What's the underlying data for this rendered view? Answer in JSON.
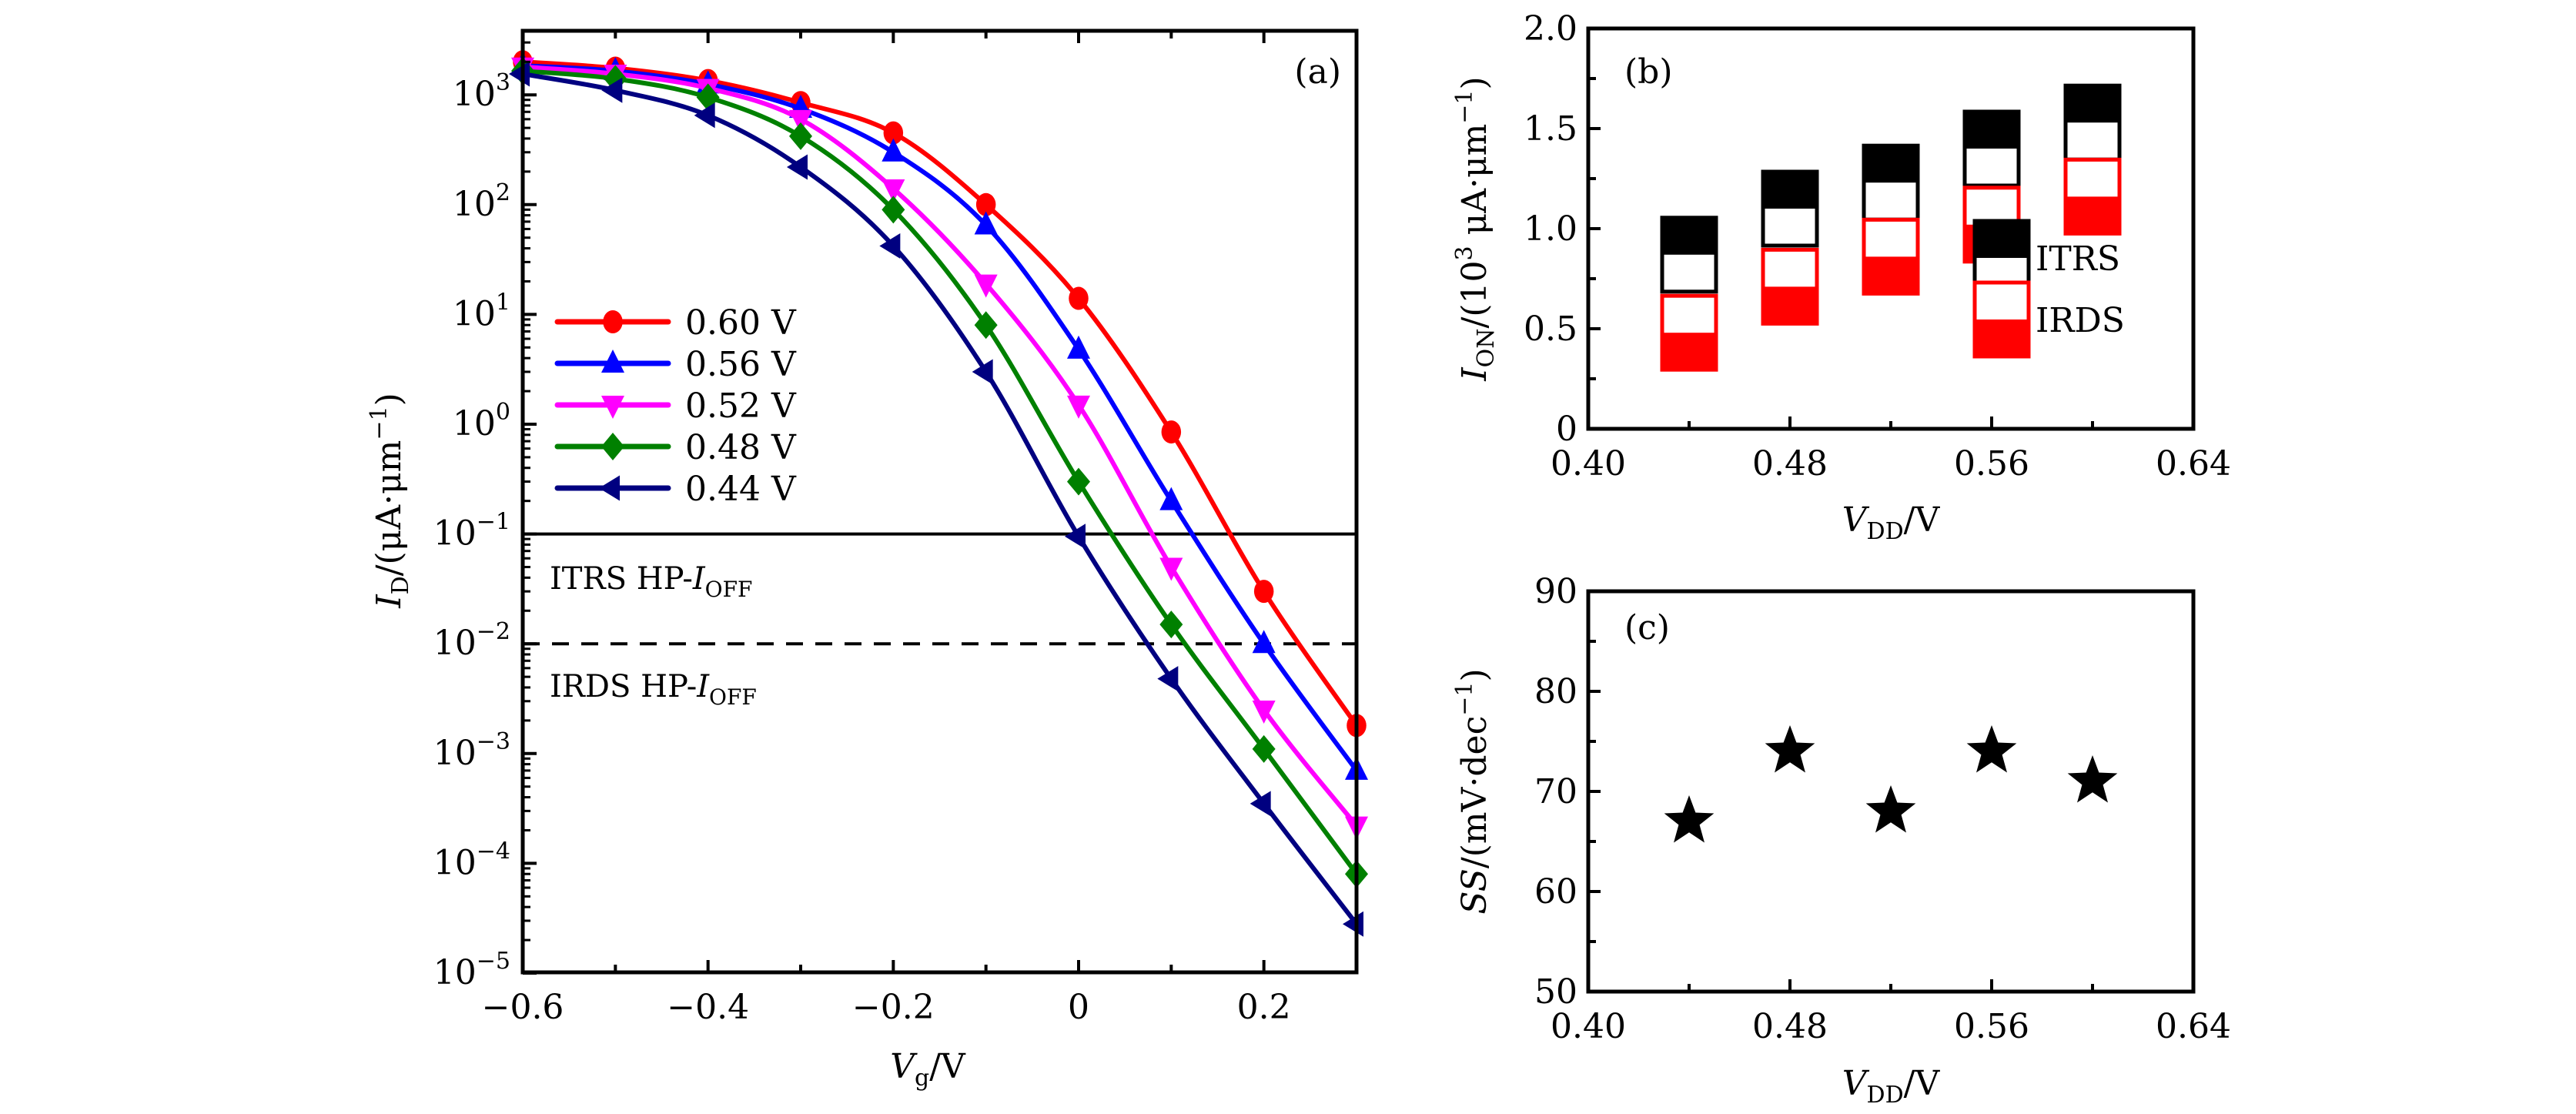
{
  "chart_data": [
    {
      "panel": "(a)",
      "type": "line",
      "title": "",
      "xlabel_main": "V",
      "xlabel_sub": "g",
      "xlabel_unit": "/V",
      "ylabel_main": "I",
      "ylabel_sub": "D",
      "ylabel_unit": "/(μA·μm",
      "ylabel_exp": "−1",
      "ylabel_close": ")",
      "yscale": "log",
      "xlim": [
        -0.6,
        0.3
      ],
      "ylim_log10": [
        -5,
        3.58
      ],
      "x": [
        -0.6,
        -0.5,
        -0.4,
        -0.3,
        -0.2,
        -0.1,
        0.0,
        0.1,
        0.2,
        0.3
      ],
      "x_ticks": [
        -0.6,
        -0.4,
        -0.2,
        0,
        0.2
      ],
      "x_tick_labels": [
        "−0.6",
        "−0.4",
        "−0.2",
        "0",
        "0.2"
      ],
      "y_tick_exps": [
        3,
        2,
        1,
        0,
        -1,
        -2,
        -3,
        -4,
        -5
      ],
      "y_tick_labels": [
        {
          "base": "10",
          "exp": "3"
        },
        {
          "base": "10",
          "exp": "2"
        },
        {
          "base": "10",
          "exp": "1"
        },
        {
          "base": "10",
          "exp": "0"
        },
        {
          "base": "10",
          "exp": "−1"
        },
        {
          "base": "10",
          "exp": "−2"
        },
        {
          "base": "10",
          "exp": "−3"
        },
        {
          "base": "10",
          "exp": "−4"
        },
        {
          "base": "10",
          "exp": "−5"
        }
      ],
      "legend_position": "center-left",
      "series": [
        {
          "name": "0.60 V",
          "color": "#ff0000",
          "marker": "circle",
          "values": [
            2000,
            1750,
            1350,
            850,
            450,
            100,
            14,
            0.85,
            0.03,
            0.0018
          ]
        },
        {
          "name": "0.56 V",
          "color": "#0000ff",
          "marker": "triangle-up",
          "values": [
            1850,
            1650,
            1250,
            750,
            300,
            65,
            4.8,
            0.2,
            0.01,
            0.0007
          ]
        },
        {
          "name": "0.52 V",
          "color": "#ff00ff",
          "marker": "triangle-down",
          "values": [
            1800,
            1550,
            1150,
            600,
            140,
            19,
            1.5,
            0.05,
            0.0025,
            0.00022
          ]
        },
        {
          "name": "0.48 V",
          "color": "#008000",
          "marker": "diamond",
          "values": [
            1650,
            1400,
            950,
            420,
            90,
            8,
            0.3,
            0.015,
            0.0011,
            8e-05
          ]
        },
        {
          "name": "0.44 V",
          "color": "#000080",
          "marker": "triangle-left",
          "values": [
            1550,
            1100,
            650,
            220,
            42,
            3,
            0.095,
            0.0048,
            0.00035,
            2.8e-05
          ]
        }
      ],
      "reference_lines": [
        {
          "value": 0.1,
          "style": "solid",
          "label_pre": "ITRS HP-",
          "label_var": "I",
          "label_sub": "OFF"
        },
        {
          "value": 0.01,
          "style": "dashed",
          "label_pre": "IRDS HP-",
          "label_var": "I",
          "label_sub": "OFF"
        }
      ]
    },
    {
      "panel": "(b)",
      "type": "scatter",
      "xlabel_main": "V",
      "xlabel_sub": "DD",
      "xlabel_unit": "/V",
      "ylabel_main": "I",
      "ylabel_sub": "ON",
      "ylabel_unit": "/(10",
      "ylabel_exp1": "3",
      "ylabel_mid": " μA·μm",
      "ylabel_exp2": "−1",
      "ylabel_close": ")",
      "xlim": [
        0.4,
        0.64
      ],
      "ylim": [
        0,
        2.0
      ],
      "x": [
        0.44,
        0.48,
        0.52,
        0.56,
        0.6
      ],
      "x_ticks": [
        0.4,
        0.48,
        0.56,
        0.64
      ],
      "x_tick_labels": [
        "0.40",
        "0.48",
        "0.56",
        "0.64"
      ],
      "y_ticks": [
        0,
        0.5,
        1.0,
        1.5,
        2.0
      ],
      "y_tick_labels": [
        "0",
        "0.5",
        "1.0",
        "1.5",
        "2.0"
      ],
      "legend_position": "bottom-right",
      "series": [
        {
          "name": "ITRS",
          "color": "#000000",
          "marker": "square-top-filled",
          "values": [
            0.87,
            1.1,
            1.23,
            1.4,
            1.53
          ]
        },
        {
          "name": "IRDS",
          "color": "#ff0000",
          "marker": "square-bottom-filled",
          "values": [
            0.48,
            0.71,
            0.86,
            1.02,
            1.16
          ]
        }
      ]
    },
    {
      "panel": "(c)",
      "type": "scatter",
      "xlabel_main": "V",
      "xlabel_sub": "DD",
      "xlabel_unit": "/V",
      "ylabel_main": "SS",
      "ylabel_unit": "/(mV·dec",
      "ylabel_exp": "−1",
      "ylabel_close": ")",
      "xlim": [
        0.4,
        0.64
      ],
      "ylim": [
        50,
        90
      ],
      "x": [
        0.44,
        0.48,
        0.52,
        0.56,
        0.6
      ],
      "x_ticks": [
        0.4,
        0.48,
        0.56,
        0.64
      ],
      "x_tick_labels": [
        "0.40",
        "0.48",
        "0.56",
        "0.64"
      ],
      "y_ticks": [
        50,
        60,
        70,
        80,
        90
      ],
      "y_tick_labels": [
        "50",
        "60",
        "70",
        "80",
        "90"
      ],
      "series": [
        {
          "name": "SS",
          "color": "#000000",
          "marker": "star",
          "values": [
            67,
            74,
            68,
            74,
            71
          ]
        }
      ]
    }
  ]
}
